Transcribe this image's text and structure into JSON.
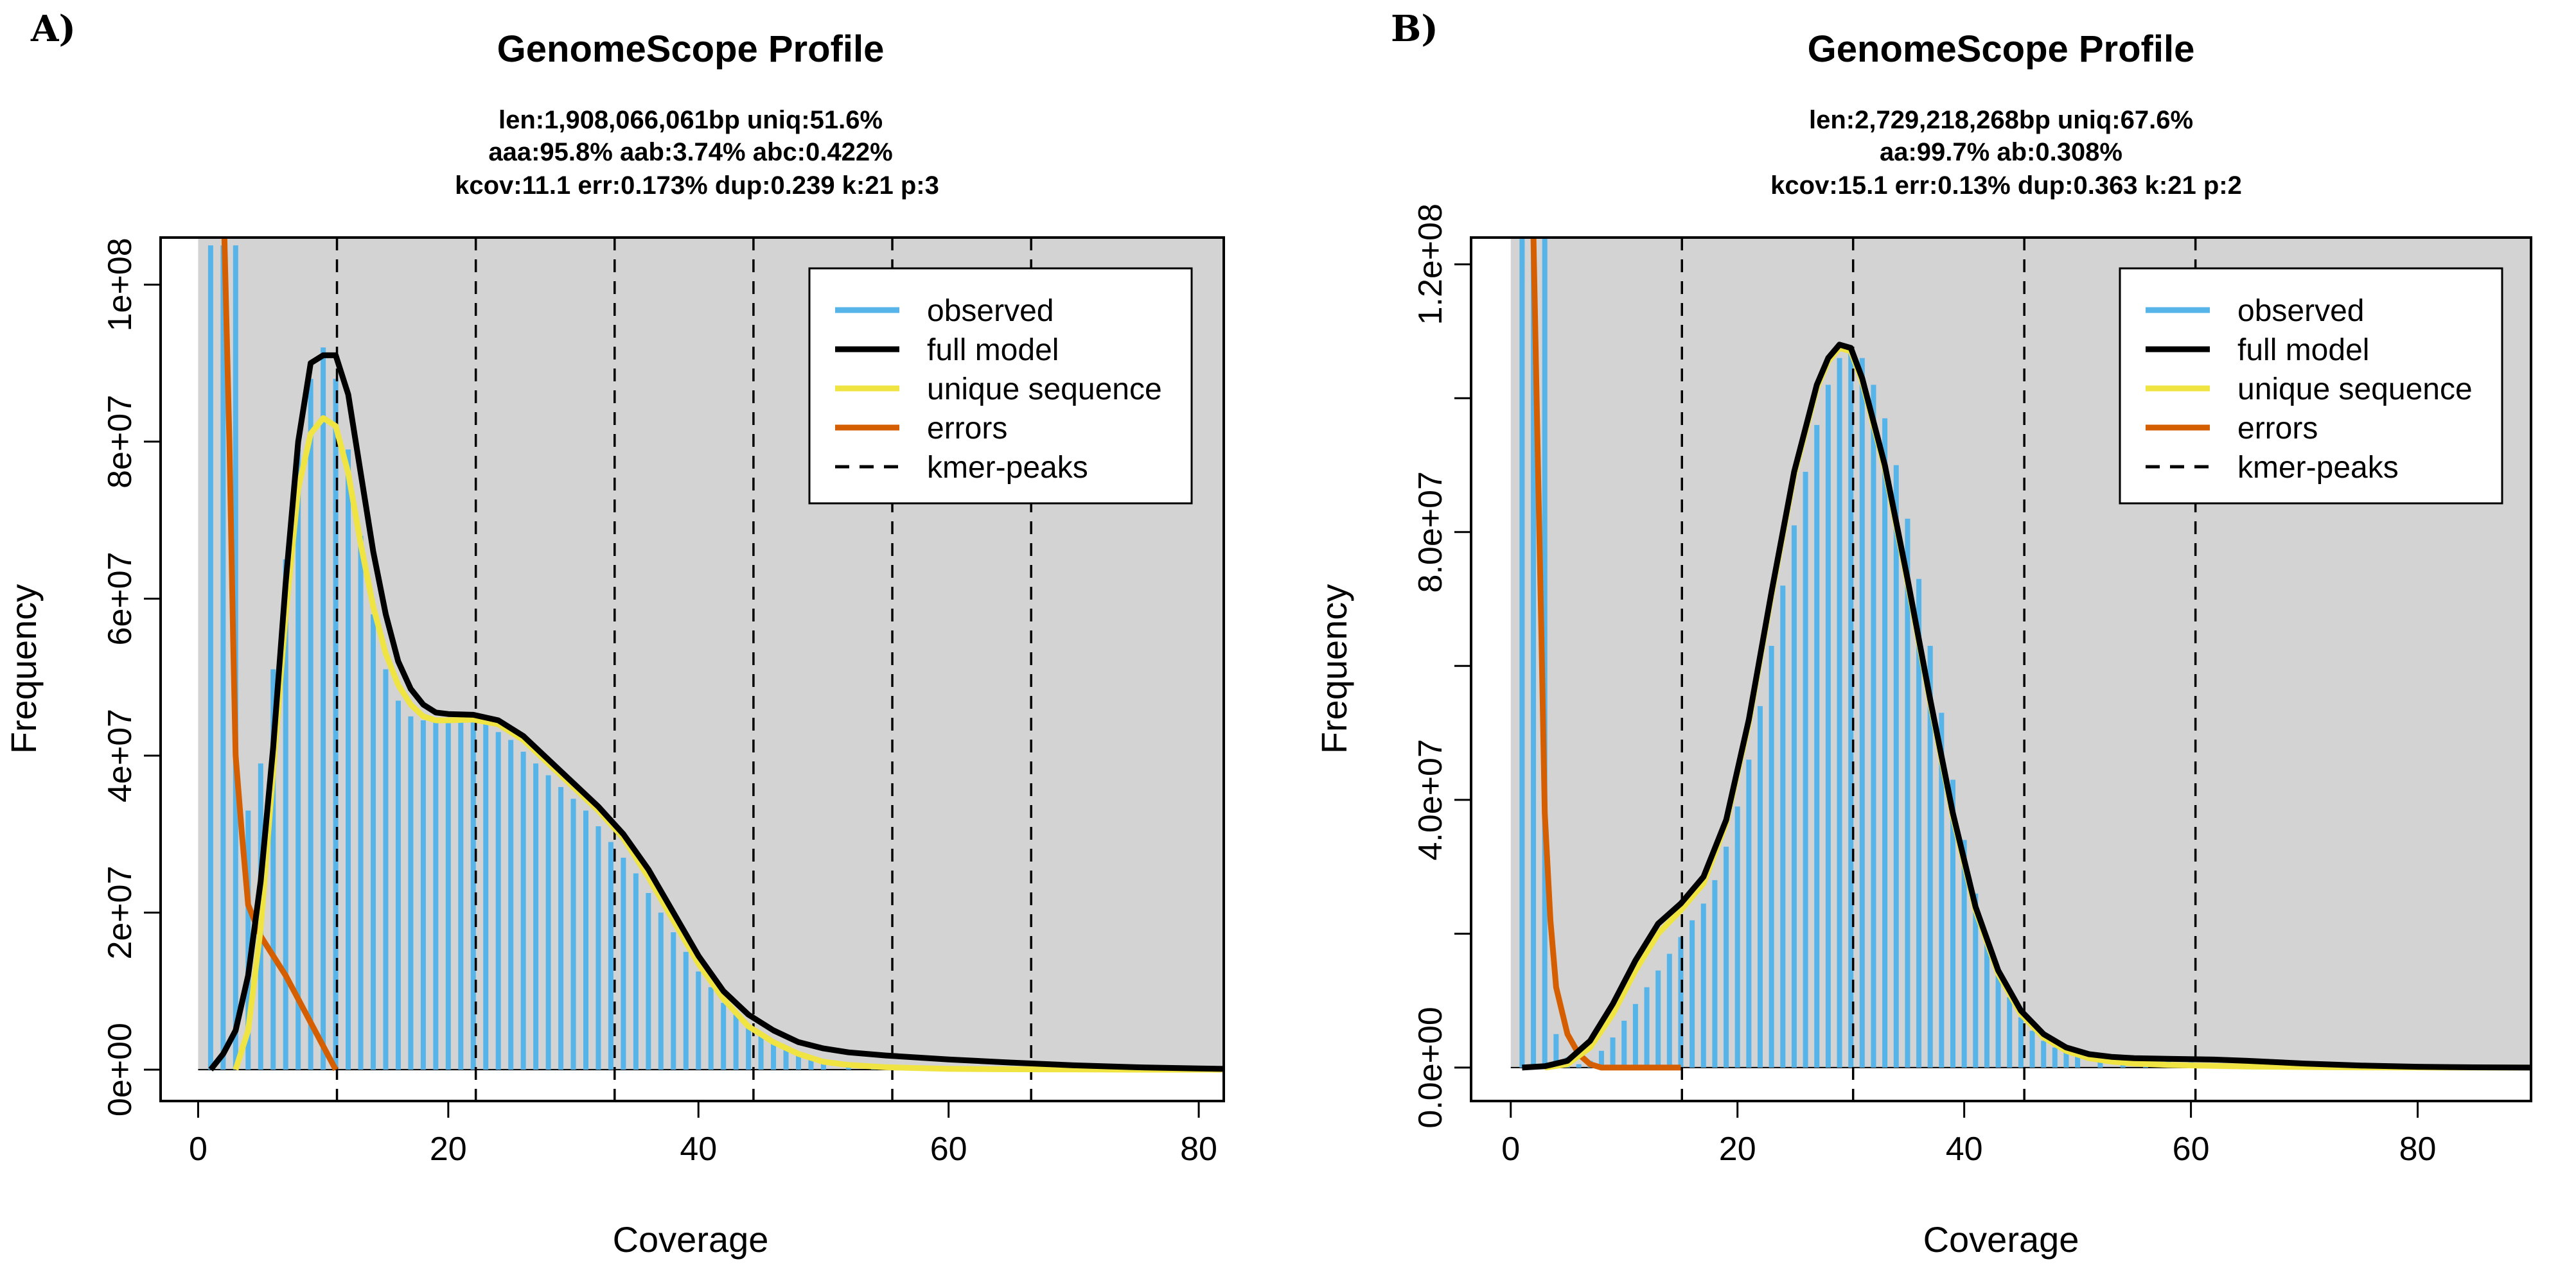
{
  "colors": {
    "observed": "#56B4E9",
    "full_model": "#000000",
    "unique_sequence": "#F0E442",
    "errors": "#D55E00",
    "kmer_peaks": "#000000",
    "plot_bg": "#D3D3D3"
  },
  "chart_data": [
    {
      "panel": "A)",
      "type": "line",
      "title": "GenomeScope Profile",
      "subtitle_lines": [
        "len:1,908,066,061bp uniq:51.6%",
        "aaa:95.8% aab:3.74% abc:0.422%",
        "kcov:11.1 err:0.173%  dup:0.239  k:21 p:3"
      ],
      "xlabel": "Coverage",
      "ylabel": "Frequency",
      "xlim": [
        -3,
        82
      ],
      "ylim": [
        -4000000,
        106000000
      ],
      "xticks": [
        0,
        20,
        40,
        60,
        80
      ],
      "xtick_labels": [
        "0",
        "20",
        "40",
        "60",
        "80"
      ],
      "yticks": [
        0,
        20000000,
        40000000,
        60000000,
        80000000,
        100000000
      ],
      "ytick_labels": [
        "0e+00",
        "2e+07",
        "4e+07",
        "6e+07",
        "8e+07",
        "1e+08"
      ],
      "kmer_peaks": [
        11.1,
        22.2,
        33.3,
        44.4,
        55.5,
        66.6
      ],
      "legend": {
        "position": "top-right",
        "entries": [
          "observed",
          "full model",
          "unique sequence",
          "errors",
          "kmer-peaks"
        ]
      },
      "observed": {
        "x": [
          1,
          2,
          3,
          4,
          5,
          6,
          7,
          8,
          9,
          10,
          11,
          12,
          13,
          14,
          15,
          16,
          17,
          18,
          19,
          20,
          21,
          22,
          23,
          24,
          25,
          26,
          27,
          28,
          29,
          30,
          31,
          32,
          33,
          34,
          35,
          36,
          37,
          38,
          39,
          40,
          41,
          42,
          43,
          44,
          45,
          46,
          47,
          48,
          49,
          50,
          52,
          54,
          56,
          58,
          60,
          65,
          70,
          75,
          80
        ],
        "y": [
          105000000,
          105000000,
          105000000,
          33000000,
          39000000,
          51000000,
          65000000,
          79000000,
          88000000,
          92000000,
          88000000,
          79000000,
          68000000,
          58000000,
          51000000,
          47000000,
          45000000,
          44500000,
          44200000,
          44200000,
          44400000,
          44500000,
          44000000,
          43000000,
          42000000,
          40500000,
          39000000,
          37500000,
          36000000,
          34500000,
          33000000,
          31000000,
          29000000,
          27000000,
          25000000,
          22500000,
          20000000,
          17500000,
          15000000,
          12500000,
          10500000,
          8500000,
          7000000,
          5500000,
          4300000,
          3300000,
          2600000,
          2000000,
          1600000,
          1300000,
          900000,
          700000,
          500000,
          400000,
          300000,
          200000,
          100000,
          50000,
          0
        ]
      },
      "full_model": {
        "x": [
          1,
          2,
          3,
          4,
          5,
          6,
          7,
          8,
          9,
          10,
          11,
          12,
          13,
          14,
          15,
          16,
          17,
          18,
          19,
          20,
          22,
          24,
          26,
          28,
          30,
          32,
          34,
          36,
          38,
          40,
          42,
          44,
          46,
          48,
          50,
          52,
          55,
          60,
          65,
          70,
          75,
          80,
          82
        ],
        "y": [
          0,
          2000000,
          5000000,
          12000000,
          24000000,
          41000000,
          62000000,
          80000000,
          90000000,
          91000000,
          91000000,
          86000000,
          76000000,
          66000000,
          58000000,
          52000000,
          48500000,
          46500000,
          45500000,
          45300000,
          45200000,
          44500000,
          42500000,
          39500000,
          36500000,
          33500000,
          30000000,
          25500000,
          20000000,
          14500000,
          10000000,
          7000000,
          5000000,
          3500000,
          2700000,
          2200000,
          1800000,
          1300000,
          900000,
          550000,
          300000,
          150000,
          100000
        ]
      },
      "unique_sequence": {
        "x": [
          3,
          4,
          5,
          6,
          7,
          8,
          9,
          10,
          11,
          12,
          13,
          14,
          15,
          16,
          17,
          18,
          19,
          20,
          22,
          24,
          26,
          28,
          30,
          32,
          34,
          36,
          38,
          40,
          42,
          44,
          46,
          48,
          50,
          52,
          55,
          60,
          65,
          70,
          75,
          80,
          82
        ],
        "y": [
          0,
          5000000,
          18000000,
          38000000,
          58000000,
          74000000,
          81000000,
          83000000,
          82000000,
          76000000,
          67000000,
          59000000,
          53000000,
          49000000,
          46500000,
          45000000,
          44500000,
          44500000,
          44600000,
          44000000,
          42000000,
          39000000,
          36000000,
          33000000,
          29500000,
          24500000,
          19000000,
          13500000,
          9000000,
          5500000,
          3500000,
          2000000,
          1000000,
          600000,
          300000,
          100000,
          50000,
          20000,
          0,
          0,
          0
        ]
      },
      "errors": {
        "x": [
          2.1,
          2.5,
          2.8,
          3.0,
          3.5,
          4.0,
          5.0,
          6.0,
          7.0,
          8.0,
          9.0,
          10.0,
          11.0
        ],
        "y": [
          106000000,
          80000000,
          55000000,
          40000000,
          30000000,
          21000000,
          17000000,
          14500000,
          12000000,
          9000000,
          6000000,
          3000000,
          0
        ]
      }
    },
    {
      "panel": "B)",
      "type": "line",
      "title": "GenomeScope Profile",
      "subtitle_lines": [
        "len:2,729,218,268bp uniq:67.6%",
        "aa:99.7% ab:0.308%",
        "kcov:15.1 err:0.13%  dup:0.363  k:21 p:2"
      ],
      "xlabel": "Coverage",
      "ylabel": "Frequency",
      "xlim": [
        -3.5,
        90
      ],
      "ylim": [
        -5000000,
        124000000
      ],
      "xticks": [
        0,
        20,
        40,
        60,
        80
      ],
      "xtick_labels": [
        "0",
        "20",
        "40",
        "60",
        "80"
      ],
      "yticks": [
        0,
        20000000,
        40000000,
        60000000,
        80000000,
        100000000,
        120000000
      ],
      "ytick_labels": [
        "0.0e+00",
        "",
        "4.0e+07",
        "",
        "8.0e+07",
        "",
        "1.2e+08"
      ],
      "kmer_peaks": [
        15.1,
        30.2,
        45.3,
        60.4
      ],
      "legend": {
        "position": "top-right",
        "entries": [
          "observed",
          "full model",
          "unique sequence",
          "errors",
          "kmer-peaks"
        ]
      },
      "observed": {
        "x": [
          1,
          2,
          3,
          4,
          5,
          6,
          7,
          8,
          9,
          10,
          11,
          12,
          13,
          14,
          15,
          16,
          17,
          18,
          19,
          20,
          21,
          22,
          23,
          24,
          25,
          26,
          27,
          28,
          29,
          30,
          31,
          32,
          33,
          34,
          35,
          36,
          37,
          38,
          39,
          40,
          41,
          42,
          43,
          44,
          45,
          46,
          47,
          48,
          49,
          50,
          52,
          54,
          56,
          58,
          60,
          62,
          65,
          70,
          75,
          80,
          85,
          90
        ],
        "y": [
          124000000,
          124000000,
          124000000,
          5000000,
          1500000,
          500000,
          1000000,
          2500000,
          4500000,
          7000000,
          9500000,
          12000000,
          14500000,
          17000000,
          19500000,
          22000000,
          24500000,
          28000000,
          33000000,
          39000000,
          46000000,
          54000000,
          63000000,
          72000000,
          81000000,
          89000000,
          96000000,
          102000000,
          106000000,
          107000000,
          106000000,
          102000000,
          97000000,
          90000000,
          82000000,
          73000000,
          63000000,
          53000000,
          43000000,
          34000000,
          26000000,
          19500000,
          14500000,
          10500000,
          7500000,
          5500000,
          4000000,
          3000000,
          2300000,
          1800000,
          1300000,
          1100000,
          1000000,
          900000,
          800000,
          700000,
          500000,
          300000,
          150000,
          60000,
          20000,
          0
        ]
      },
      "full_model": {
        "x": [
          1,
          3,
          5,
          7,
          9,
          11,
          13,
          15,
          17,
          19,
          21,
          23,
          25,
          27,
          28,
          29,
          30,
          31,
          33,
          35,
          37,
          39,
          41,
          43,
          45,
          47,
          49,
          51,
          53,
          55,
          58,
          62,
          65,
          70,
          75,
          80,
          85,
          90
        ],
        "y": [
          0,
          200000,
          1000000,
          4000000,
          9500000,
          16000000,
          21500000,
          24500000,
          28500000,
          37000000,
          52000000,
          71000000,
          89000000,
          102000000,
          106000000,
          108000000,
          107500000,
          103000000,
          90000000,
          73000000,
          55000000,
          38000000,
          24000000,
          14500000,
          8500000,
          5000000,
          3000000,
          2000000,
          1600000,
          1400000,
          1300000,
          1200000,
          1000000,
          600000,
          300000,
          120000,
          40000,
          0
        ]
      },
      "unique_sequence": {
        "x": [
          3,
          5,
          7,
          9,
          11,
          13,
          15,
          17,
          19,
          21,
          23,
          25,
          27,
          28,
          29,
          30,
          31,
          33,
          35,
          37,
          39,
          41,
          43,
          45,
          47,
          49,
          51,
          53,
          55,
          58,
          62,
          65,
          70,
          75,
          80,
          85,
          90
        ],
        "y": [
          0,
          500000,
          3000000,
          8000000,
          14500000,
          20000000,
          23500000,
          27500000,
          36500000,
          51500000,
          70500000,
          88500000,
          101500000,
          105500000,
          107500000,
          107000000,
          102500000,
          89500000,
          72500000,
          54500000,
          37500000,
          23500000,
          14000000,
          8000000,
          4500000,
          2500000,
          1400000,
          900000,
          600000,
          400000,
          250000,
          150000,
          80000,
          30000,
          10000,
          0,
          0
        ]
      },
      "errors": {
        "x": [
          2.0,
          2.4,
          2.7,
          3.0,
          3.5,
          4.0,
          5.0,
          6.0,
          7.0,
          8.0,
          10.0,
          12.0,
          15.0
        ],
        "y": [
          124000000,
          90000000,
          65000000,
          38000000,
          22000000,
          12000000,
          5000000,
          2000000,
          500000,
          0,
          0,
          0,
          0
        ]
      }
    }
  ]
}
